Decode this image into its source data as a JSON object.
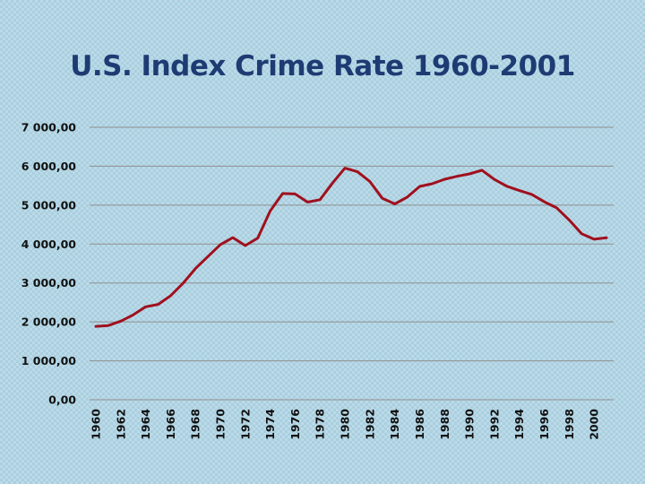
{
  "slide": {
    "title": "U.S. Index Crime Rate 1960-2001"
  },
  "colors": {
    "background": "#a9cfe0",
    "title": "#1f3b73",
    "line": "#a0101e",
    "grid": "#8f8f8f"
  },
  "chart_data": {
    "type": "line",
    "title": "U.S. Index Crime Rate 1960-2001",
    "xlabel": "",
    "ylabel": "",
    "ylim": [
      0,
      7000
    ],
    "y_ticks": [
      "0,00",
      "1 000,00",
      "2 000,00",
      "3 000,00",
      "4 000,00",
      "5 000,00",
      "6 000,00",
      "7 000,00"
    ],
    "y_tick_values": [
      0,
      1000,
      2000,
      3000,
      4000,
      5000,
      6000,
      7000
    ],
    "x_tick_labels": [
      "1960",
      "1962",
      "1964",
      "1966",
      "1968",
      "1970",
      "1972",
      "1974",
      "1976",
      "1978",
      "1980",
      "1982",
      "1984",
      "1986",
      "1988",
      "1990",
      "1992",
      "1994",
      "1996",
      "1998",
      "2000"
    ],
    "grid": "horizontal",
    "legend": "none",
    "x": [
      1960,
      1961,
      1962,
      1963,
      1964,
      1965,
      1966,
      1967,
      1968,
      1969,
      1970,
      1971,
      1972,
      1973,
      1974,
      1975,
      1976,
      1977,
      1978,
      1979,
      1980,
      1981,
      1982,
      1983,
      1984,
      1985,
      1986,
      1987,
      1988,
      1989,
      1990,
      1991,
      1992,
      1993,
      1994,
      1995,
      1996,
      1997,
      1998,
      1999,
      2000,
      2001
    ],
    "series": [
      {
        "values": [
          1887,
          1906,
          2020,
          2180,
          2388,
          2449,
          2670,
          2990,
          3370,
          3680,
          3985,
          4165,
          3961,
          4155,
          4850,
          5299,
          5287,
          5078,
          5140,
          5566,
          5950,
          5858,
          5604,
          5175,
          5031,
          5207,
          5480,
          5550,
          5664,
          5741,
          5803,
          5898,
          5660,
          5484,
          5374,
          5275,
          5087,
          4930,
          4620,
          4267,
          4125,
          4160
        ]
      }
    ]
  }
}
